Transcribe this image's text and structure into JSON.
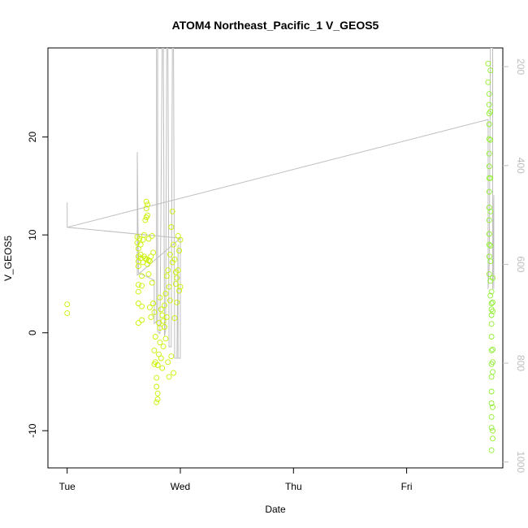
{
  "chart_data": {
    "type": "scatter",
    "title": "ATOM4 Northeast_Pacific_1 V_GEOS5",
    "xlabel": "Date",
    "ylabel": "V_GEOS5",
    "x_ticks": [
      "Tue",
      "Wed",
      "Thu",
      "Fri"
    ],
    "y_ticks": [
      -10,
      0,
      10,
      20
    ],
    "ylim": [
      -13.8,
      29.1
    ],
    "xlim_days": [
      -0.17,
      3.85
    ],
    "y2_ticks": [
      200,
      400,
      600,
      800,
      1000
    ],
    "y2lim": [
      1012,
      162
    ],
    "grid": false,
    "legend": "none",
    "colors": {
      "early_points": "#ccf000",
      "late_points": "#90ee30",
      "pressure_line": "#bebebe"
    },
    "series": [
      {
        "axis": "left",
        "points": [
          [
            0.0,
            2.9
          ],
          [
            0.0,
            2.0
          ],
          [
            0.62,
            9.8
          ],
          [
            0.62,
            9.2
          ],
          [
            0.63,
            8.6
          ],
          [
            0.63,
            7.8
          ],
          [
            0.63,
            7.3
          ],
          [
            0.63,
            6.8
          ],
          [
            0.63,
            4.9
          ],
          [
            0.63,
            4.2
          ],
          [
            0.63,
            3.0
          ],
          [
            0.63,
            1.0
          ],
          [
            0.64,
            9.6
          ],
          [
            0.65,
            9.0
          ],
          [
            0.65,
            8.0
          ],
          [
            0.65,
            7.6
          ],
          [
            0.66,
            5.8
          ],
          [
            0.66,
            4.8
          ],
          [
            0.66,
            2.7
          ],
          [
            0.66,
            1.3
          ],
          [
            0.67,
            9.5
          ],
          [
            0.67,
            7.2
          ],
          [
            0.68,
            10.0
          ],
          [
            0.68,
            7.8
          ],
          [
            0.69,
            11.5
          ],
          [
            0.69,
            7.6
          ],
          [
            0.7,
            13.4
          ],
          [
            0.7,
            12.7
          ],
          [
            0.7,
            11.8
          ],
          [
            0.7,
            7.5
          ],
          [
            0.71,
            13.1
          ],
          [
            0.71,
            12.0
          ],
          [
            0.71,
            7.0
          ],
          [
            0.72,
            9.6
          ],
          [
            0.72,
            7.4
          ],
          [
            0.72,
            6.0
          ],
          [
            0.73,
            7.3
          ],
          [
            0.73,
            2.6
          ],
          [
            0.74,
            7.8
          ],
          [
            0.74,
            1.6
          ],
          [
            0.75,
            9.9
          ],
          [
            0.75,
            5.1
          ],
          [
            0.76,
            8.2
          ],
          [
            0.76,
            3.0
          ],
          [
            0.77,
            -1.8
          ],
          [
            0.77,
            -3.2
          ],
          [
            0.77,
            2.1
          ],
          [
            0.78,
            -0.4
          ],
          [
            0.78,
            -3.0
          ],
          [
            0.79,
            -4.6
          ],
          [
            0.79,
            -5.5
          ],
          [
            0.79,
            -7.1
          ],
          [
            0.8,
            -6.8
          ],
          [
            0.8,
            -6.2
          ],
          [
            0.8,
            -3.3
          ],
          [
            0.81,
            -2.2
          ],
          [
            0.81,
            1.0
          ],
          [
            0.82,
            0.5
          ],
          [
            0.82,
            -1.0
          ],
          [
            0.82,
            3.6
          ],
          [
            0.83,
            2.4
          ],
          [
            0.83,
            -2.6
          ],
          [
            0.84,
            1.8
          ],
          [
            0.84,
            -3.6
          ],
          [
            0.85,
            1.2
          ],
          [
            0.85,
            -1.4
          ],
          [
            0.86,
            2.8
          ],
          [
            0.86,
            0.6
          ],
          [
            0.87,
            4.0
          ],
          [
            0.87,
            -0.6
          ],
          [
            0.88,
            5.8
          ],
          [
            0.88,
            1.6
          ],
          [
            0.89,
            6.4
          ],
          [
            0.89,
            -3.0
          ],
          [
            0.9,
            4.7
          ],
          [
            0.9,
            -4.5
          ],
          [
            0.91,
            8.0
          ],
          [
            0.91,
            3.3
          ],
          [
            0.92,
            10.8
          ],
          [
            0.92,
            -2.4
          ],
          [
            0.93,
            12.4
          ],
          [
            0.93,
            7.2
          ],
          [
            0.94,
            9.0
          ],
          [
            0.94,
            -4.1
          ],
          [
            0.95,
            7.5
          ],
          [
            0.95,
            1.5
          ],
          [
            0.96,
            6.2
          ],
          [
            0.96,
            5.0
          ],
          [
            0.97,
            5.6
          ],
          [
            0.97,
            3.1
          ],
          [
            0.98,
            9.9
          ],
          [
            0.98,
            6.4
          ],
          [
            0.99,
            8.4
          ],
          [
            0.99,
            4.3
          ],
          [
            1.0,
            9.5
          ],
          [
            1.0,
            4.7
          ]
        ]
      },
      {
        "axis": "left",
        "points": [
          [
            3.72,
            27.5
          ],
          [
            3.72,
            25.6
          ],
          [
            3.73,
            24.4
          ],
          [
            3.73,
            23.3
          ],
          [
            3.73,
            22.4
          ],
          [
            3.73,
            21.3
          ],
          [
            3.73,
            19.8
          ],
          [
            3.73,
            18.3
          ],
          [
            3.73,
            17.0
          ],
          [
            3.73,
            15.8
          ],
          [
            3.73,
            14.4
          ],
          [
            3.73,
            12.8
          ],
          [
            3.73,
            11.5
          ],
          [
            3.73,
            10.1
          ],
          [
            3.73,
            9.0
          ],
          [
            3.73,
            7.8
          ],
          [
            3.73,
            6.0
          ],
          [
            3.74,
            26.8
          ],
          [
            3.74,
            22.6
          ],
          [
            3.74,
            19.7
          ],
          [
            3.74,
            15.8
          ],
          [
            3.74,
            12.4
          ],
          [
            3.74,
            8.9
          ],
          [
            3.74,
            7.3
          ],
          [
            3.74,
            5.3
          ],
          [
            3.74,
            3.8
          ],
          [
            3.75,
            4.2
          ],
          [
            3.75,
            3.0
          ],
          [
            3.75,
            2.4
          ],
          [
            3.75,
            1.8
          ],
          [
            3.75,
            0.9
          ],
          [
            3.75,
            -0.4
          ],
          [
            3.75,
            -1.8
          ],
          [
            3.75,
            -3.2
          ],
          [
            3.75,
            -4.5
          ],
          [
            3.75,
            -6.0
          ],
          [
            3.75,
            -7.2
          ],
          [
            3.75,
            -8.6
          ],
          [
            3.75,
            -9.7
          ],
          [
            3.75,
            -12.0
          ],
          [
            3.76,
            5.6
          ],
          [
            3.76,
            3.1
          ],
          [
            3.76,
            2.2
          ],
          [
            3.76,
            -1.7
          ],
          [
            3.76,
            -3.0
          ],
          [
            3.76,
            -4.0
          ],
          [
            3.76,
            -7.6
          ],
          [
            3.76,
            -10.0
          ],
          [
            3.76,
            -10.8
          ]
        ]
      },
      {
        "axis": "right",
        "kind": "line",
        "points": [
          [
            0.0,
            475
          ],
          [
            0.0,
            525
          ],
          [
            1.0,
            547
          ],
          [
            0.62,
            622
          ],
          [
            0.62,
            373
          ],
          [
            0.63,
            617
          ],
          [
            0.77,
            632
          ],
          [
            0.77,
            720
          ],
          [
            0.79,
            715
          ],
          [
            0.79,
            162
          ],
          [
            0.8,
            162
          ],
          [
            0.8,
            736
          ],
          [
            0.82,
            740
          ],
          [
            0.84,
            162
          ],
          [
            0.85,
            162
          ],
          [
            0.86,
            745
          ],
          [
            0.87,
            733
          ],
          [
            0.88,
            162
          ],
          [
            0.89,
            162
          ],
          [
            0.9,
            767
          ],
          [
            0.92,
            767
          ],
          [
            0.93,
            162
          ],
          [
            0.94,
            162
          ],
          [
            0.95,
            790
          ],
          [
            0.97,
            790
          ],
          [
            0.98,
            560
          ],
          [
            0.98,
            790
          ],
          [
            1.0,
            790
          ],
          [
            1.0,
            547
          ],
          [
            0.0,
            525
          ],
          [
            3.72,
            307
          ],
          [
            3.72,
            650
          ],
          [
            3.73,
            600
          ],
          [
            3.74,
            162
          ],
          [
            3.76,
            162
          ],
          [
            3.76,
            650
          ],
          [
            3.77,
            460
          ],
          [
            3.77,
            650
          ]
        ]
      }
    ]
  }
}
